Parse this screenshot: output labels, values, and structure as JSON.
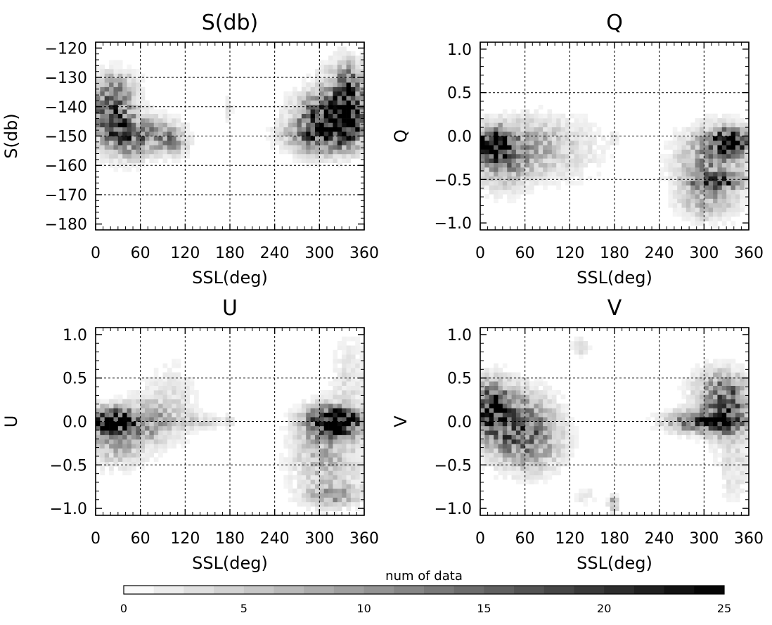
{
  "chart_data": [
    {
      "type": "heatmap",
      "title": "S(db)",
      "xlabel": "SSL(deg)",
      "ylabel": "S(db)",
      "xlim": [
        0,
        360
      ],
      "ylim": [
        -182,
        -118
      ],
      "xticks": [
        "0",
        "60",
        "120",
        "180",
        "240",
        "300",
        "360"
      ],
      "yticks": [
        "−120",
        "−130",
        "−140",
        "−150",
        "−160",
        "−170",
        "−180"
      ],
      "grid_x": [
        60,
        120,
        180,
        240,
        300
      ],
      "grid_y": [
        -130,
        -140,
        -150,
        -160,
        -170
      ],
      "blobs": [
        {
          "x": 20,
          "y": -142,
          "sx": 18,
          "sy": 6,
          "w": 16
        },
        {
          "x": 40,
          "y": -150,
          "sx": 20,
          "sy": 5,
          "w": 12
        },
        {
          "x": 80,
          "y": -150,
          "sx": 22,
          "sy": 4,
          "w": 9
        },
        {
          "x": 105,
          "y": -152,
          "sx": 12,
          "sy": 3,
          "w": 6
        },
        {
          "x": 30,
          "y": -133,
          "sx": 18,
          "sy": 4,
          "w": 6
        },
        {
          "x": 178,
          "y": -140,
          "sx": 3,
          "sy": 3,
          "w": 4
        },
        {
          "x": 315,
          "y": -144,
          "sx": 28,
          "sy": 6,
          "w": 22
        },
        {
          "x": 340,
          "y": -140,
          "sx": 12,
          "sy": 7,
          "w": 18
        },
        {
          "x": 300,
          "y": -150,
          "sx": 30,
          "sy": 4,
          "w": 10
        },
        {
          "x": 335,
          "y": -130,
          "sx": 20,
          "sy": 5,
          "w": 6
        }
      ]
    },
    {
      "type": "heatmap",
      "title": "Q",
      "xlabel": "SSL(deg)",
      "ylabel": "Q",
      "xlim": [
        0,
        360
      ],
      "ylim": [
        -1.08,
        1.08
      ],
      "xticks": [
        "0",
        "60",
        "120",
        "180",
        "240",
        "300",
        "360"
      ],
      "yticks": [
        "1.0",
        "0.5",
        "0.0",
        "−0.5",
        "−1.0"
      ],
      "grid_x": [
        60,
        120,
        180,
        240,
        300
      ],
      "grid_y": [
        0.5,
        0.0,
        -0.5
      ],
      "blobs": [
        {
          "x": 15,
          "y": -0.08,
          "sx": 16,
          "sy": 0.12,
          "w": 22
        },
        {
          "x": 30,
          "y": -0.25,
          "sx": 25,
          "sy": 0.22,
          "w": 10
        },
        {
          "x": 70,
          "y": -0.1,
          "sx": 30,
          "sy": 0.2,
          "w": 5
        },
        {
          "x": 110,
          "y": -0.15,
          "sx": 40,
          "sy": 0.25,
          "w": 3
        },
        {
          "x": 178,
          "y": -0.05,
          "sx": 4,
          "sy": 0.05,
          "w": 3
        },
        {
          "x": 335,
          "y": -0.06,
          "sx": 18,
          "sy": 0.1,
          "w": 22
        },
        {
          "x": 310,
          "y": -0.3,
          "sx": 30,
          "sy": 0.25,
          "w": 10
        },
        {
          "x": 320,
          "y": -0.52,
          "sx": 25,
          "sy": 0.05,
          "w": 16
        },
        {
          "x": 305,
          "y": -0.75,
          "sx": 25,
          "sy": 0.15,
          "w": 6
        }
      ]
    },
    {
      "type": "heatmap",
      "title": "U",
      "xlabel": "SSL(deg)",
      "ylabel": "U",
      "xlim": [
        0,
        360
      ],
      "ylim": [
        -1.08,
        1.08
      ],
      "xticks": [
        "0",
        "60",
        "120",
        "180",
        "240",
        "300",
        "360"
      ],
      "yticks": [
        "1.0",
        "0.5",
        "0.0",
        "−0.5",
        "−1.0"
      ],
      "grid_x": [
        60,
        120,
        180,
        240,
        300
      ],
      "grid_y": [
        0.5,
        0.0,
        -0.5
      ],
      "blobs": [
        {
          "x": 20,
          "y": 0.0,
          "sx": 20,
          "sy": 0.1,
          "w": 24
        },
        {
          "x": 30,
          "y": -0.2,
          "sx": 25,
          "sy": 0.2,
          "w": 8
        },
        {
          "x": 70,
          "y": 0.0,
          "sx": 22,
          "sy": 0.15,
          "w": 8
        },
        {
          "x": 100,
          "y": 0.2,
          "sx": 25,
          "sy": 0.3,
          "w": 3
        },
        {
          "x": 140,
          "y": 0.0,
          "sx": 20,
          "sy": 0.06,
          "w": 4
        },
        {
          "x": 180,
          "y": 0.0,
          "sx": 3,
          "sy": 0.05,
          "w": 5
        },
        {
          "x": 330,
          "y": 0.0,
          "sx": 20,
          "sy": 0.1,
          "w": 24
        },
        {
          "x": 305,
          "y": 0.0,
          "sx": 20,
          "sy": 0.12,
          "w": 14
        },
        {
          "x": 310,
          "y": -0.4,
          "sx": 30,
          "sy": 0.3,
          "w": 7
        },
        {
          "x": 320,
          "y": -0.85,
          "sx": 25,
          "sy": 0.08,
          "w": 8
        },
        {
          "x": 340,
          "y": 0.5,
          "sx": 15,
          "sy": 0.3,
          "w": 3
        }
      ]
    },
    {
      "type": "heatmap",
      "title": "V",
      "xlabel": "SSL(deg)",
      "ylabel": "V",
      "xlim": [
        0,
        360
      ],
      "ylim": [
        -1.08,
        1.08
      ],
      "xticks": [
        "0",
        "60",
        "120",
        "180",
        "240",
        "300",
        "360"
      ],
      "yticks": [
        "1.0",
        "0.5",
        "0.0",
        "−0.5",
        "−1.0"
      ],
      "grid_x": [
        60,
        120,
        180,
        240,
        300
      ],
      "grid_y": [
        0.5,
        0.0,
        -0.5
      ],
      "blobs": [
        {
          "x": 15,
          "y": 0.15,
          "sx": 15,
          "sy": 0.2,
          "w": 20
        },
        {
          "x": 40,
          "y": 0.0,
          "sx": 25,
          "sy": 0.25,
          "w": 10
        },
        {
          "x": 75,
          "y": -0.1,
          "sx": 25,
          "sy": 0.25,
          "w": 7
        },
        {
          "x": 60,
          "y": -0.3,
          "sx": 30,
          "sy": 0.2,
          "w": 5
        },
        {
          "x": 135,
          "y": 0.85,
          "sx": 8,
          "sy": 0.08,
          "w": 3
        },
        {
          "x": 140,
          "y": -0.85,
          "sx": 10,
          "sy": 0.06,
          "w": 3
        },
        {
          "x": 178,
          "y": -0.95,
          "sx": 4,
          "sy": 0.06,
          "w": 10
        },
        {
          "x": 300,
          "y": 0.0,
          "sx": 30,
          "sy": 0.08,
          "w": 20
        },
        {
          "x": 330,
          "y": 0.15,
          "sx": 20,
          "sy": 0.2,
          "w": 16
        },
        {
          "x": 320,
          "y": 0.4,
          "sx": 25,
          "sy": 0.15,
          "w": 6
        },
        {
          "x": 340,
          "y": -0.5,
          "sx": 15,
          "sy": 0.3,
          "w": 3
        }
      ]
    }
  ],
  "colorbar": {
    "title": "num of data",
    "range": [
      0,
      25
    ],
    "ticks": [
      "0",
      "5",
      "10",
      "15",
      "20",
      "25"
    ],
    "levels": 20
  }
}
